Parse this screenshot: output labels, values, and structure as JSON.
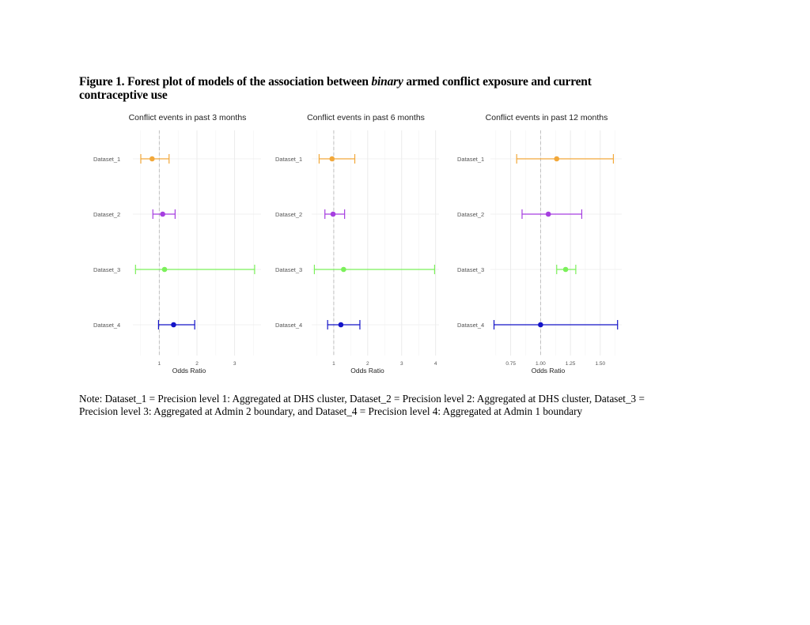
{
  "figure": {
    "title_part1": "Figure 1. Forest plot of models of the association between ",
    "title_italic": "binary",
    "title_part2": " armed conflict exposure and current contraceptive use",
    "note": "Note: Dataset_1 = Precision level 1: Aggregated at DHS cluster, Dataset_2 = Precision level 2: Aggregated at DHS cluster, Dataset_3 = Precision level 3: Aggregated at Admin 2 boundary, and Dataset_4 = Precision level 4: Aggregated at Admin 1 boundary"
  },
  "chart_data": [
    {
      "type": "forest",
      "title": "Conflict events in past 3 months",
      "xlabel": "Odds Ratio",
      "categories": [
        "Dataset_1",
        "Dataset_2",
        "Dataset_3",
        "Dataset_4"
      ],
      "xlim": [
        0.3,
        3.7
      ],
      "xticks": [
        1,
        2,
        3
      ],
      "xtick_labels": [
        "1",
        "2",
        "3"
      ],
      "minor_gridlines": [
        0.5,
        1.5,
        2.5,
        3.5
      ],
      "reference_line": 1,
      "estimates": [
        0.81,
        1.09,
        1.14,
        1.38
      ],
      "lower": [
        0.51,
        0.83,
        0.37,
        0.98
      ],
      "upper": [
        1.26,
        1.42,
        3.53,
        1.94
      ]
    },
    {
      "type": "forest",
      "title": "Conflict events in past 6 months",
      "xlabel": "Odds Ratio",
      "categories": [
        "Dataset_1",
        "Dataset_2",
        "Dataset_3",
        "Dataset_4"
      ],
      "xlim": [
        0.35,
        4.1
      ],
      "xticks": [
        1,
        2,
        3,
        4
      ],
      "xtick_labels": [
        "1",
        "2",
        "3",
        "4"
      ],
      "minor_gridlines": [
        0.5,
        1.5,
        2.5,
        3.5
      ],
      "reference_line": 1,
      "estimates": [
        0.95,
        0.98,
        1.29,
        1.21
      ],
      "lower": [
        0.57,
        0.74,
        0.43,
        0.82
      ],
      "upper": [
        1.62,
        1.32,
        3.97,
        1.77
      ]
    },
    {
      "type": "forest",
      "title": "Conflict events in past 12 months",
      "xlabel": "Odds Ratio",
      "categories": [
        "Dataset_1",
        "Dataset_2",
        "Dataset_3",
        "Dataset_4"
      ],
      "xlim": [
        0.58,
        1.68
      ],
      "xticks": [
        0.75,
        1.0,
        1.25,
        1.5
      ],
      "xtick_labels": [
        "0.75",
        "1.00",
        "1.25",
        "1.50"
      ],
      "minor_gridlines": [
        0.625,
        0.875,
        1.125,
        1.375,
        1.625
      ],
      "reference_line": 1,
      "estimates": [
        1.135,
        1.065,
        1.21,
        1.0
      ],
      "lower": [
        0.8,
        0.845,
        1.135,
        0.61
      ],
      "upper": [
        1.61,
        1.345,
        1.295,
        1.645
      ]
    }
  ],
  "colors": [
    "#F2A83A",
    "#A63FE0",
    "#7BF05A",
    "#1414C8"
  ]
}
